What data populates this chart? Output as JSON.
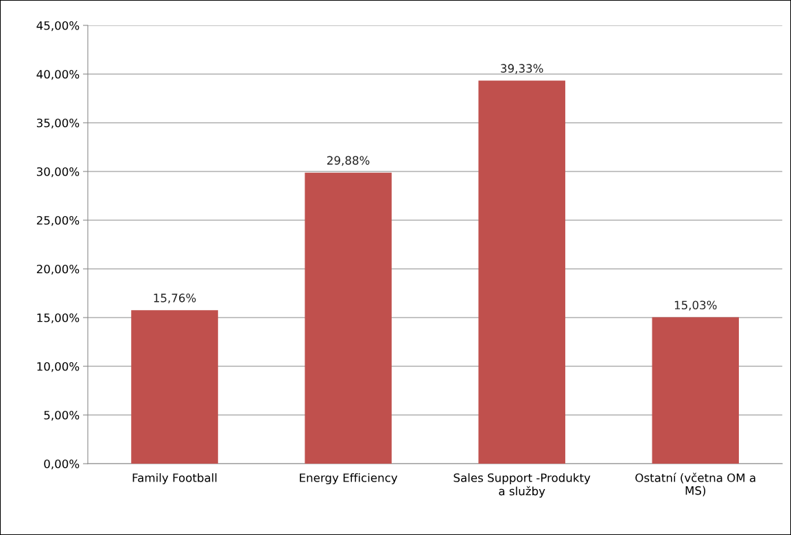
{
  "chart_data": {
    "type": "bar",
    "categories": [
      "Family Football",
      "Energy Efficiency",
      "Sales Support -Produkty\na služby",
      "Ostatní (včetna OM a\nMS)"
    ],
    "values": [
      15.76,
      29.88,
      39.33,
      15.03
    ],
    "value_labels": [
      "15,76%",
      "29,88%",
      "39,33%",
      "15,03%"
    ],
    "color": "#c0504d",
    "ylim": [
      0,
      45
    ],
    "yticks": [
      {
        "value": 0,
        "label": "0,00%"
      },
      {
        "value": 5,
        "label": "5,00%"
      },
      {
        "value": 10,
        "label": "10,00%"
      },
      {
        "value": 15,
        "label": "15,00%"
      },
      {
        "value": 20,
        "label": "20,00%"
      },
      {
        "value": 25,
        "label": "25,00%"
      },
      {
        "value": 30,
        "label": "30,00%"
      },
      {
        "value": 35,
        "label": "35,00%"
      },
      {
        "value": 40,
        "label": "40,00%"
      },
      {
        "value": 45,
        "label": "45,00%"
      }
    ],
    "grid": "y"
  }
}
